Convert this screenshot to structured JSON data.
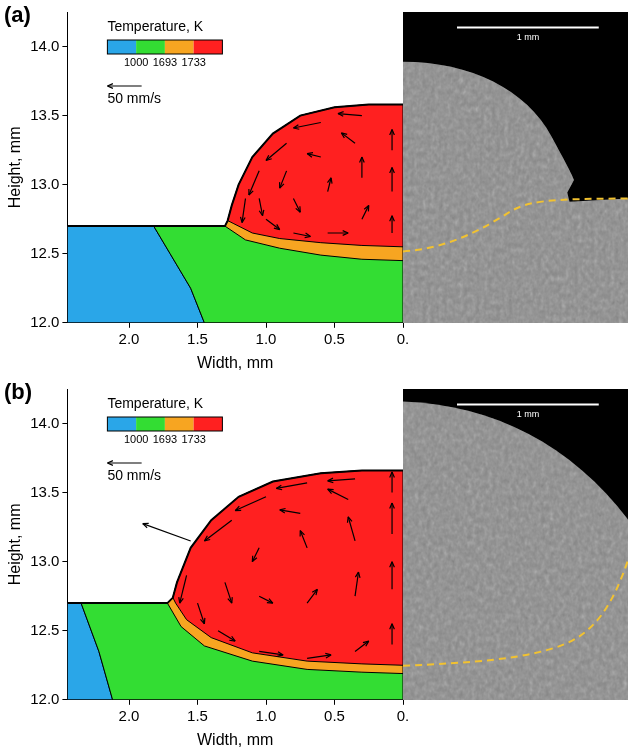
{
  "chart_data": [
    {
      "type": "contour_vector",
      "title": "(a)",
      "xlabel": "Width, mm",
      "ylabel": "Height, mm",
      "xlim": [
        2.45,
        0
      ],
      "ylim": [
        12,
        14.25
      ],
      "xticks": [
        {
          "value": 2,
          "label": "2.0"
        },
        1.5,
        {
          "value": 1,
          "label": "1.0"
        },
        0.5,
        {
          "value": 0,
          "label": "0."
        }
      ],
      "yticks": [
        {
          "value": 12,
          "label": "12.0"
        },
        12.5,
        {
          "value": 13,
          "label": "13.0"
        },
        13.5,
        {
          "value": 14,
          "label": "14.0"
        }
      ],
      "grid": false,
      "colorbar": {
        "title": "Temperature, K",
        "levels": [
          1000,
          1693,
          1733
        ],
        "colors": [
          "#2aa6e8",
          "#33dd33",
          "#f7a521",
          "#ff2020"
        ]
      },
      "vector_reference": {
        "value": 50,
        "label": "50 mm/s"
      },
      "regions": [
        {
          "color": "#2aa6e8",
          "points": [
            [
              2.45,
              12.0
            ],
            [
              2.45,
              12.7
            ],
            [
              1.82,
              12.7
            ],
            [
              1.7,
              12.5
            ],
            [
              1.55,
              12.25
            ],
            [
              1.45,
              12.0
            ]
          ]
        },
        {
          "color": "#33dd33",
          "points": [
            [
              1.45,
              12.0
            ],
            [
              1.55,
              12.25
            ],
            [
              1.7,
              12.5
            ],
            [
              1.82,
              12.7
            ],
            [
              0,
              12.7
            ],
            [
              0,
              12.0
            ]
          ]
        },
        {
          "color": "#f7a521",
          "points": [
            [
              1.3,
              12.7
            ],
            [
              1.28,
              12.74
            ],
            [
              1.25,
              12.85
            ],
            [
              1.2,
              13.0
            ],
            [
              1.1,
              13.2
            ],
            [
              0.95,
              13.37
            ],
            [
              0.75,
              13.5
            ],
            [
              0.5,
              13.56
            ],
            [
              0.25,
              13.58
            ],
            [
              0,
              13.58
            ],
            [
              0,
              12.45
            ],
            [
              0.3,
              12.46
            ],
            [
              0.6,
              12.49
            ],
            [
              0.9,
              12.54
            ],
            [
              1.15,
              12.6
            ]
          ]
        },
        {
          "color": "#ff2020",
          "points": [
            [
              1.28,
              12.74
            ],
            [
              1.25,
              12.85
            ],
            [
              1.2,
              13.0
            ],
            [
              1.1,
              13.2
            ],
            [
              0.95,
              13.37
            ],
            [
              0.75,
              13.5
            ],
            [
              0.5,
              13.56
            ],
            [
              0.25,
              13.58
            ],
            [
              0,
              13.58
            ],
            [
              0,
              12.55
            ],
            [
              0.3,
              12.56
            ],
            [
              0.6,
              12.58
            ],
            [
              0.9,
              12.61
            ],
            [
              1.1,
              12.65
            ],
            [
              1.24,
              12.72
            ]
          ]
        }
      ],
      "surface": [
        [
          2.45,
          12.7
        ],
        [
          1.3,
          12.7
        ],
        [
          1.28,
          12.74
        ],
        [
          1.25,
          12.85
        ],
        [
          1.2,
          13.0
        ],
        [
          1.1,
          13.2
        ],
        [
          0.95,
          13.37
        ],
        [
          0.75,
          13.5
        ],
        [
          0.5,
          13.56
        ],
        [
          0.25,
          13.58
        ],
        [
          0,
          13.58
        ]
      ],
      "vectors": [
        [
          0.08,
          12.65,
          0,
          25
        ],
        [
          0.08,
          12.95,
          0,
          35
        ],
        [
          0.08,
          13.25,
          0,
          30
        ],
        [
          0.3,
          13.5,
          35,
          3
        ],
        [
          0.6,
          13.45,
          40,
          -8
        ],
        [
          0.85,
          13.3,
          30,
          -25
        ],
        [
          1.05,
          13.1,
          15,
          -35
        ],
        [
          1.15,
          12.9,
          5,
          -35
        ],
        [
          0.3,
          12.75,
          -10,
          20
        ],
        [
          0.3,
          13.05,
          0,
          30
        ],
        [
          0.35,
          13.3,
          20,
          15
        ],
        [
          0.55,
          12.65,
          -30,
          0
        ],
        [
          0.55,
          12.95,
          -5,
          20
        ],
        [
          0.6,
          13.2,
          20,
          5
        ],
        [
          0.8,
          12.65,
          -25,
          -5
        ],
        [
          0.8,
          12.9,
          -10,
          -20
        ],
        [
          0.85,
          13.1,
          10,
          -25
        ],
        [
          1.0,
          12.75,
          -20,
          -15
        ],
        [
          1.05,
          12.9,
          -5,
          -25
        ]
      ],
      "micrograph": {
        "scale_bar": "1 mm"
      }
    },
    {
      "type": "contour_vector",
      "title": "(b)",
      "xlabel": "Width, mm",
      "ylabel": "Height, mm",
      "xlim": [
        2.45,
        0
      ],
      "ylim": [
        12,
        14.25
      ],
      "xticks": [
        {
          "value": 2,
          "label": "2.0"
        },
        1.5,
        {
          "value": 1,
          "label": "1.0"
        },
        0.5,
        {
          "value": 0,
          "label": "0."
        }
      ],
      "yticks": [
        {
          "value": 12,
          "label": "12.0"
        },
        12.5,
        {
          "value": 13,
          "label": "13.0"
        },
        13.5,
        {
          "value": 14,
          "label": "14.0"
        }
      ],
      "grid": false,
      "colorbar": {
        "title": "Temperature, K",
        "levels": [
          1000,
          1693,
          1733
        ],
        "colors": [
          "#2aa6e8",
          "#33dd33",
          "#f7a521",
          "#ff2020"
        ]
      },
      "vector_reference": {
        "value": 50,
        "label": "50 mm/s"
      },
      "regions": [
        {
          "color": "#2aa6e8",
          "points": [
            [
              2.45,
              12.0
            ],
            [
              2.45,
              12.7
            ],
            [
              2.35,
              12.7
            ],
            [
              2.22,
              12.35
            ],
            [
              2.12,
              12.0
            ]
          ]
        },
        {
          "color": "#33dd33",
          "points": [
            [
              2.12,
              12.0
            ],
            [
              2.22,
              12.35
            ],
            [
              2.35,
              12.7
            ],
            [
              0,
              12.7
            ],
            [
              0,
              12.0
            ]
          ]
        },
        {
          "color": "#f7a521",
          "points": [
            [
              1.72,
              12.7
            ],
            [
              1.68,
              12.74
            ],
            [
              1.65,
              12.85
            ],
            [
              1.55,
              13.1
            ],
            [
              1.4,
              13.3
            ],
            [
              1.2,
              13.47
            ],
            [
              0.95,
              13.58
            ],
            [
              0.6,
              13.64
            ],
            [
              0.3,
              13.66
            ],
            [
              0,
              13.66
            ],
            [
              0,
              12.19
            ],
            [
              0.3,
              12.2
            ],
            [
              0.7,
              12.22
            ],
            [
              1.1,
              12.28
            ],
            [
              1.45,
              12.39
            ],
            [
              1.62,
              12.53
            ]
          ]
        },
        {
          "color": "#ff2020",
          "points": [
            [
              1.68,
              12.74
            ],
            [
              1.65,
              12.85
            ],
            [
              1.55,
              13.1
            ],
            [
              1.4,
              13.3
            ],
            [
              1.2,
              13.47
            ],
            [
              0.95,
              13.58
            ],
            [
              0.6,
              13.64
            ],
            [
              0.3,
              13.66
            ],
            [
              0,
              13.66
            ],
            [
              0,
              12.25
            ],
            [
              0.3,
              12.26
            ],
            [
              0.7,
              12.28
            ],
            [
              1.1,
              12.34
            ],
            [
              1.4,
              12.45
            ],
            [
              1.58,
              12.58
            ],
            [
              1.66,
              12.7
            ]
          ]
        }
      ],
      "surface": [
        [
          2.45,
          12.7
        ],
        [
          1.72,
          12.7
        ],
        [
          1.68,
          12.74
        ],
        [
          1.65,
          12.85
        ],
        [
          1.55,
          13.1
        ],
        [
          1.4,
          13.3
        ],
        [
          1.2,
          13.47
        ],
        [
          0.95,
          13.58
        ],
        [
          0.6,
          13.64
        ],
        [
          0.3,
          13.66
        ],
        [
          0,
          13.66
        ]
      ],
      "vectors": [
        [
          0.08,
          12.4,
          0,
          30
        ],
        [
          0.08,
          12.8,
          0,
          40
        ],
        [
          0.08,
          13.2,
          0,
          45
        ],
        [
          0.08,
          13.5,
          0,
          30
        ],
        [
          0.35,
          13.6,
          40,
          -3
        ],
        [
          0.7,
          13.57,
          45,
          -8
        ],
        [
          1.0,
          13.47,
          45,
          -20
        ],
        [
          1.25,
          13.3,
          40,
          -30
        ],
        [
          1.55,
          13.15,
          70,
          25
        ],
        [
          1.58,
          12.9,
          10,
          -40
        ],
        [
          0.35,
          12.35,
          -20,
          15
        ],
        [
          0.35,
          12.75,
          -5,
          35
        ],
        [
          0.35,
          13.15,
          10,
          35
        ],
        [
          0.4,
          13.45,
          30,
          15
        ],
        [
          0.7,
          12.3,
          -35,
          5
        ],
        [
          0.7,
          12.7,
          -15,
          20
        ],
        [
          0.7,
          13.1,
          10,
          25
        ],
        [
          0.75,
          13.35,
          30,
          5
        ],
        [
          1.05,
          12.35,
          -35,
          -5
        ],
        [
          1.05,
          12.75,
          -20,
          -10
        ],
        [
          1.05,
          13.1,
          10,
          -20
        ],
        [
          1.35,
          12.5,
          -25,
          -15
        ],
        [
          1.3,
          12.85,
          -10,
          -30
        ],
        [
          1.5,
          12.7,
          -10,
          -30
        ]
      ],
      "micrograph": {
        "scale_bar": "1 mm"
      }
    }
  ]
}
